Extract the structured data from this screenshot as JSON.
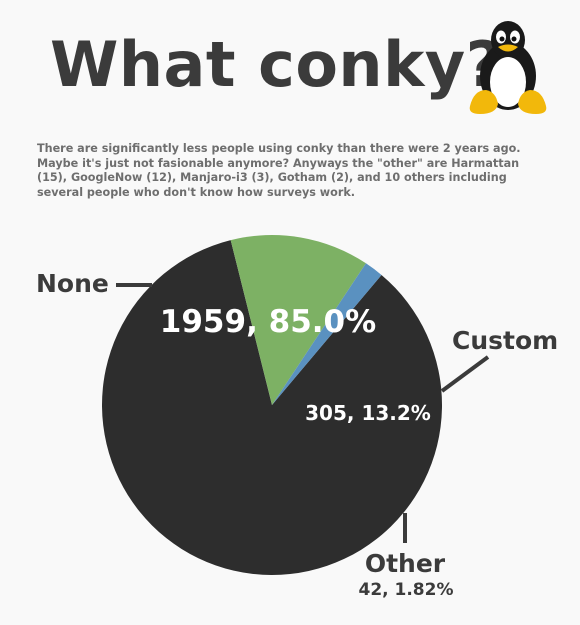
{
  "title": "What conky?",
  "subtitle": "There are significantly less people using conky than there were 2 years ago. Maybe it's just not fasionable anymore? Anyways the \"other\" are Harmattan (15), GoogleNow (12), Manjaro-i3 (3), Gotham (2), and 10 others including several people who don't know how surveys work.",
  "logo_icon": "tux-penguin-icon",
  "chart_data": {
    "type": "pie",
    "categories": [
      "None",
      "Custom",
      "Other"
    ],
    "values": [
      1959,
      305,
      42
    ],
    "percentages": [
      85.0,
      13.2,
      1.82
    ],
    "data_labels": [
      "1959, 85.0%",
      "305, 13.2%",
      "42, 1.82%"
    ],
    "colors": [
      "#2d2d2d",
      "#7db164",
      "#5a91c0"
    ],
    "label_color": "#3b3b3b",
    "leader_color": "#3b3b3b"
  }
}
